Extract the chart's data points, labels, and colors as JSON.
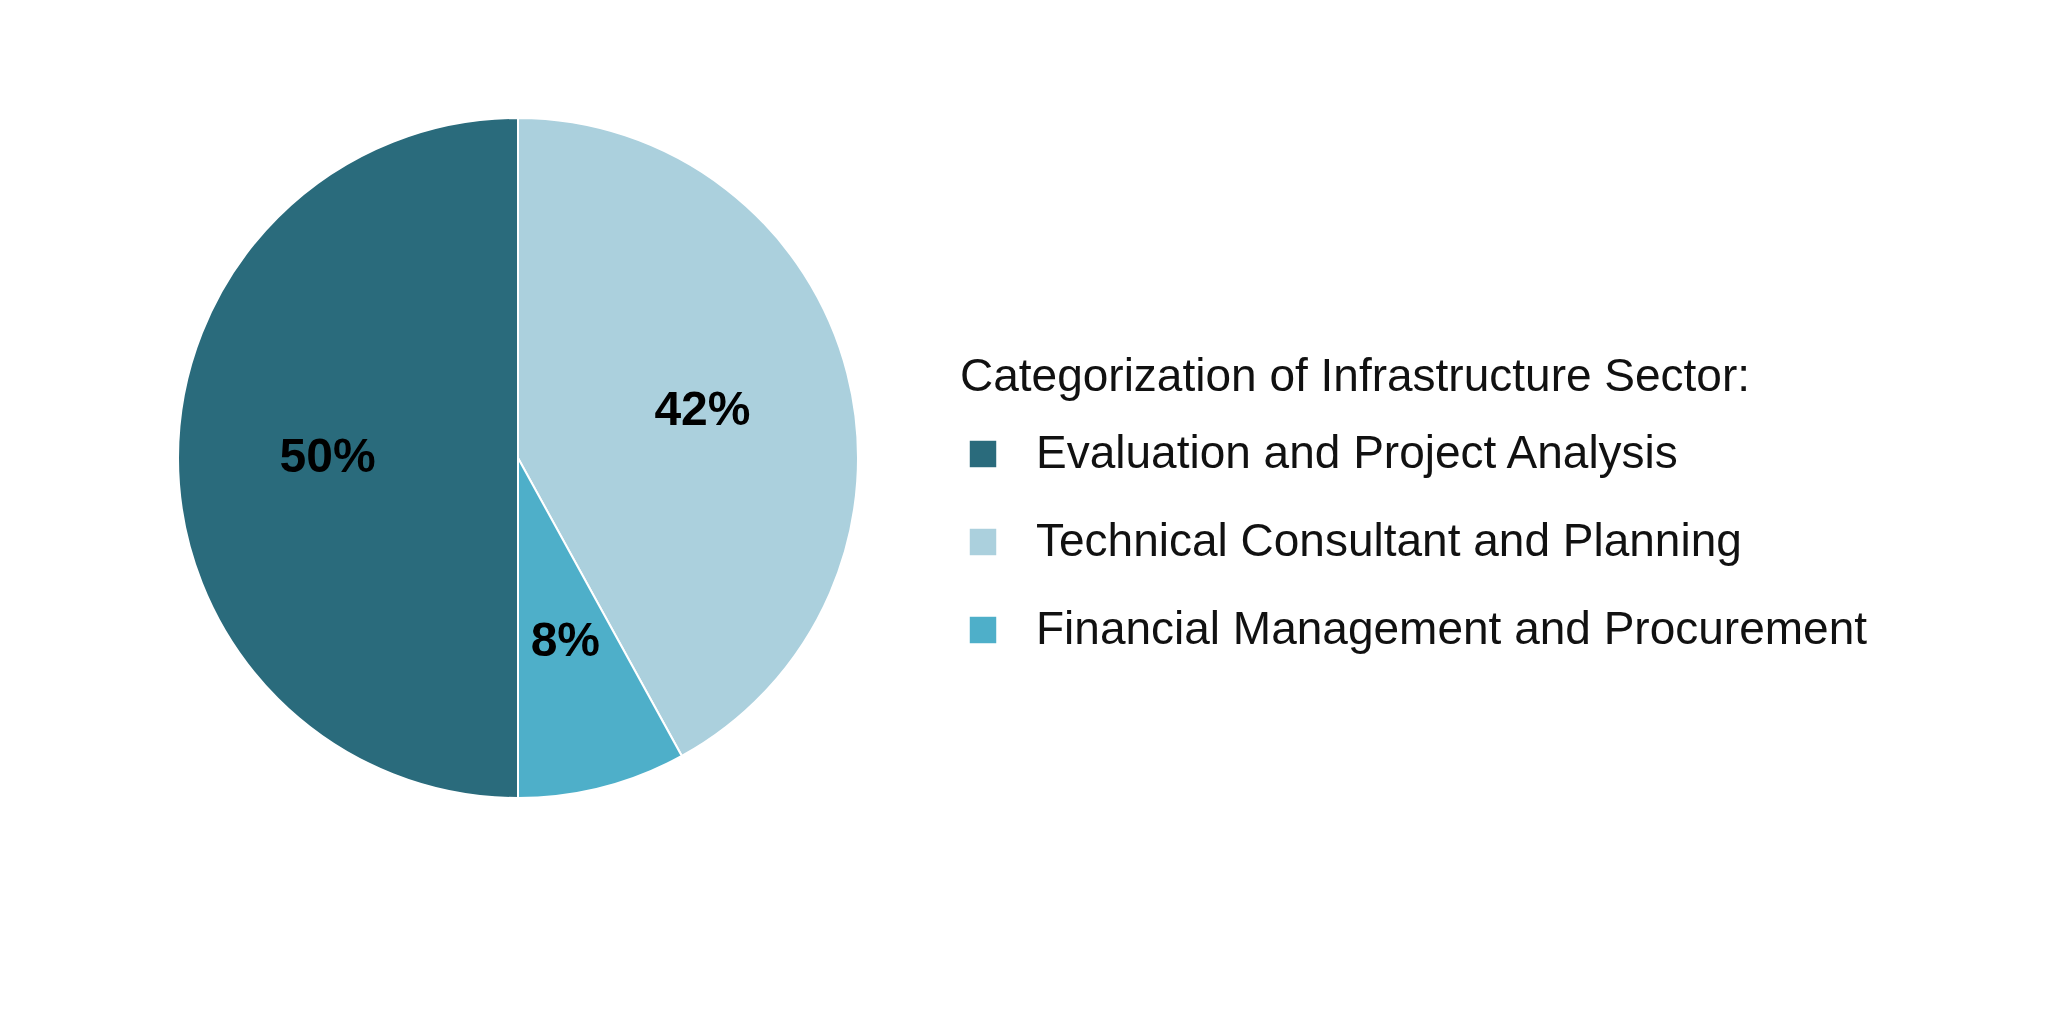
{
  "chart_data": {
    "type": "pie",
    "legend_title": "Categorization of Infrastructure Sector:",
    "categories": [
      "Evaluation and Project Analysis",
      "Technical Consultant and Planning",
      "Financial Management and Procurement"
    ],
    "values": [
      50,
      42,
      8
    ],
    "colors": [
      "#2a6b7c",
      "#abd0dd",
      "#4eafc9"
    ],
    "value_labels": [
      "50%",
      "42%",
      "8%"
    ],
    "legend": "right"
  }
}
